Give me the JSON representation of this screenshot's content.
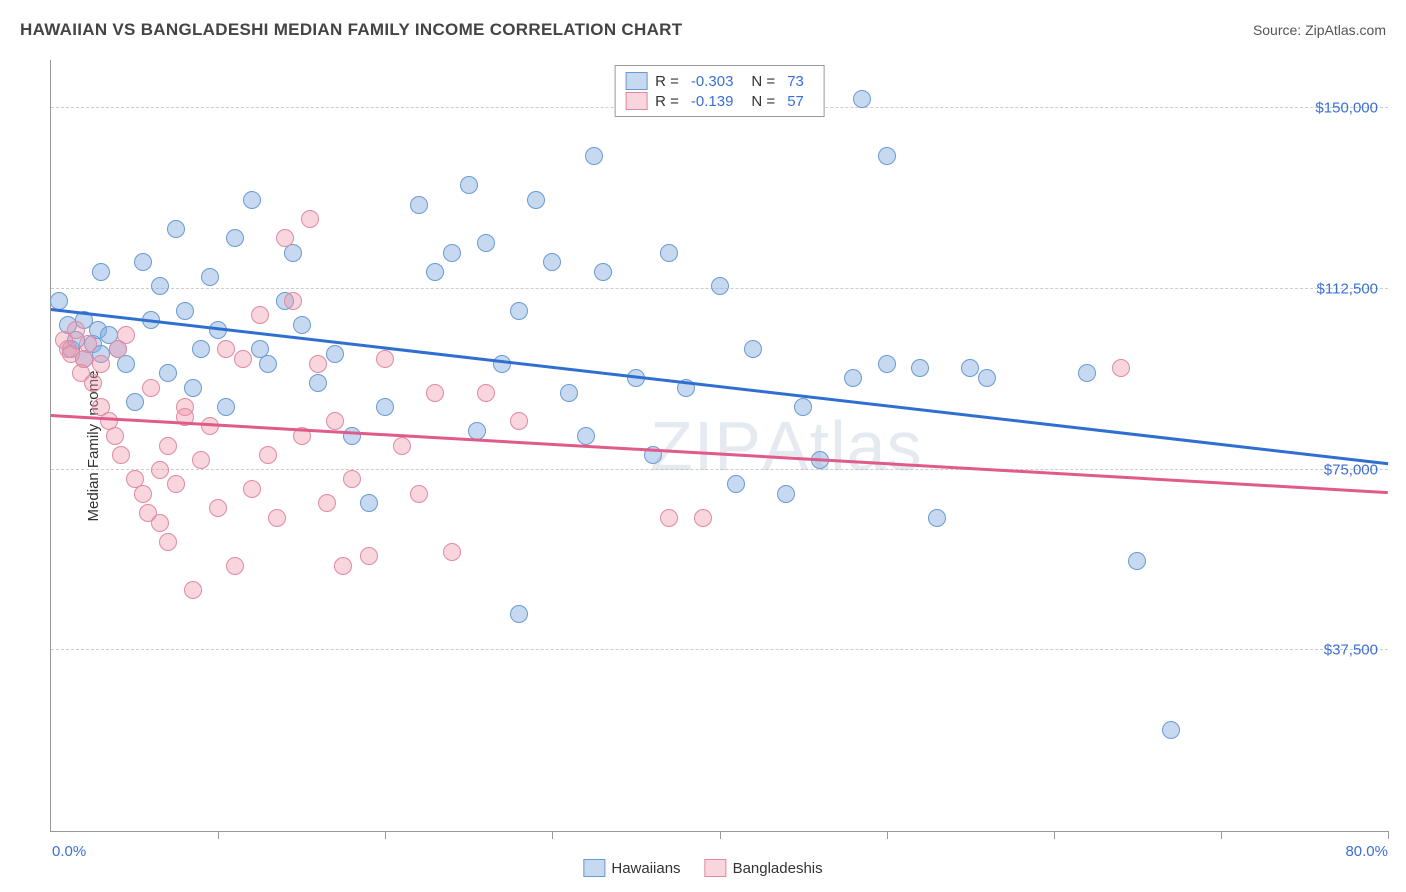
{
  "title": "HAWAIIAN VS BANGLADESHI MEDIAN FAMILY INCOME CORRELATION CHART",
  "source": "Source: ZipAtlas.com",
  "watermark": {
    "a": "ZIP",
    "b": "Atlas"
  },
  "chart": {
    "type": "scatter",
    "ylabel": "Median Family Income",
    "xlim": [
      0,
      80
    ],
    "ylim": [
      0,
      160000
    ],
    "y_ticks": [
      37500,
      75000,
      112500,
      150000
    ],
    "y_tick_labels": [
      "$37,500",
      "$75,000",
      "$112,500",
      "$150,000"
    ],
    "x_ticks": [
      10,
      20,
      30,
      40,
      50,
      60,
      70,
      80
    ],
    "x_axis_min_label": "0.0%",
    "x_axis_max_label": "80.0%",
    "background_color": "#ffffff",
    "grid_color": "#cccccc",
    "axis_color": "#999999",
    "tick_label_color": "#3b6fd6",
    "marker_size": 18,
    "series": [
      {
        "name": "Hawaiians",
        "color_fill": "rgba(130, 170, 225, 0.45)",
        "color_stroke": "#6a9ad2",
        "trend_color": "#2f6fd0",
        "R": "-0.303",
        "N": "73",
        "trend": {
          "x1": 0,
          "y1": 108000,
          "x2": 80,
          "y2": 76000
        },
        "points": [
          [
            0.5,
            110000
          ],
          [
            1,
            105000
          ],
          [
            1.2,
            100000
          ],
          [
            1.5,
            102000
          ],
          [
            2,
            106000
          ],
          [
            2,
            98000
          ],
          [
            2.5,
            101000
          ],
          [
            2.8,
            104000
          ],
          [
            3,
            99000
          ],
          [
            3,
            116000
          ],
          [
            3.5,
            103000
          ],
          [
            4,
            100000
          ],
          [
            4.5,
            97000
          ],
          [
            5,
            89000
          ],
          [
            5.5,
            118000
          ],
          [
            6,
            106000
          ],
          [
            6.5,
            113000
          ],
          [
            7,
            95000
          ],
          [
            7.5,
            125000
          ],
          [
            8,
            108000
          ],
          [
            8.5,
            92000
          ],
          [
            9,
            100000
          ],
          [
            9.5,
            115000
          ],
          [
            10,
            104000
          ],
          [
            10.5,
            88000
          ],
          [
            11,
            123000
          ],
          [
            12,
            131000
          ],
          [
            12.5,
            100000
          ],
          [
            13,
            97000
          ],
          [
            14,
            110000
          ],
          [
            14.5,
            120000
          ],
          [
            15,
            105000
          ],
          [
            16,
            93000
          ],
          [
            17,
            99000
          ],
          [
            18,
            82000
          ],
          [
            19,
            68000
          ],
          [
            20,
            88000
          ],
          [
            22,
            130000
          ],
          [
            23,
            116000
          ],
          [
            24,
            120000
          ],
          [
            25,
            134000
          ],
          [
            25.5,
            83000
          ],
          [
            26,
            122000
          ],
          [
            27,
            97000
          ],
          [
            28,
            108000
          ],
          [
            28,
            45000
          ],
          [
            29,
            131000
          ],
          [
            30,
            118000
          ],
          [
            31,
            91000
          ],
          [
            32,
            82000
          ],
          [
            32.5,
            140000
          ],
          [
            33,
            116000
          ],
          [
            35,
            94000
          ],
          [
            36,
            78000
          ],
          [
            37,
            120000
          ],
          [
            38,
            92000
          ],
          [
            40,
            113000
          ],
          [
            41,
            72000
          ],
          [
            42,
            100000
          ],
          [
            44,
            70000
          ],
          [
            45,
            88000
          ],
          [
            46,
            77000
          ],
          [
            48,
            94000
          ],
          [
            48.5,
            152000
          ],
          [
            50,
            140000
          ],
          [
            52,
            96000
          ],
          [
            53,
            65000
          ],
          [
            55,
            96000
          ],
          [
            65,
            56000
          ],
          [
            67,
            21000
          ],
          [
            62,
            95000
          ],
          [
            50,
            97000
          ],
          [
            56,
            94000
          ]
        ]
      },
      {
        "name": "Bangladeshis",
        "color_fill": "rgba(240, 150, 170, 0.40)",
        "color_stroke": "#e08aa2",
        "trend_color": "#e05a8a",
        "R": "-0.139",
        "N": "57",
        "trend": {
          "x1": 0,
          "y1": 86000,
          "x2": 80,
          "y2": 70000
        },
        "points": [
          [
            0.8,
            102000
          ],
          [
            1,
            100000
          ],
          [
            1.2,
            99000
          ],
          [
            1.5,
            104000
          ],
          [
            1.8,
            95000
          ],
          [
            2,
            98000
          ],
          [
            2.2,
            101000
          ],
          [
            2.5,
            93000
          ],
          [
            3,
            97000
          ],
          [
            3,
            88000
          ],
          [
            3.5,
            85000
          ],
          [
            3.8,
            82000
          ],
          [
            4,
            100000
          ],
          [
            4.2,
            78000
          ],
          [
            4.5,
            103000
          ],
          [
            5,
            73000
          ],
          [
            5.5,
            70000
          ],
          [
            5.8,
            66000
          ],
          [
            6,
            92000
          ],
          [
            6.5,
            75000
          ],
          [
            6.5,
            64000
          ],
          [
            7,
            80000
          ],
          [
            7,
            60000
          ],
          [
            7.5,
            72000
          ],
          [
            8,
            88000
          ],
          [
            8.5,
            50000
          ],
          [
            9,
            77000
          ],
          [
            9.5,
            84000
          ],
          [
            10,
            67000
          ],
          [
            10.5,
            100000
          ],
          [
            11,
            55000
          ],
          [
            11.5,
            98000
          ],
          [
            12,
            71000
          ],
          [
            12.5,
            107000
          ],
          [
            13,
            78000
          ],
          [
            13.5,
            65000
          ],
          [
            14,
            123000
          ],
          [
            14.5,
            110000
          ],
          [
            15,
            82000
          ],
          [
            15.5,
            127000
          ],
          [
            16,
            97000
          ],
          [
            16.5,
            68000
          ],
          [
            17,
            85000
          ],
          [
            17.5,
            55000
          ],
          [
            18,
            73000
          ],
          [
            19,
            57000
          ],
          [
            20,
            98000
          ],
          [
            21,
            80000
          ],
          [
            22,
            70000
          ],
          [
            23,
            91000
          ],
          [
            24,
            58000
          ],
          [
            26,
            91000
          ],
          [
            28,
            85000
          ],
          [
            37,
            65000
          ],
          [
            39,
            65000
          ],
          [
            64,
            96000
          ],
          [
            8,
            86000
          ]
        ]
      }
    ],
    "bottom_legend": [
      {
        "swatch_fill": "rgba(130,170,225,0.45)",
        "swatch_stroke": "#6a9ad2",
        "label": "Hawaiians"
      },
      {
        "swatch_fill": "rgba(240,150,170,0.40)",
        "swatch_stroke": "#e08aa2",
        "label": "Bangladeshis"
      }
    ]
  }
}
